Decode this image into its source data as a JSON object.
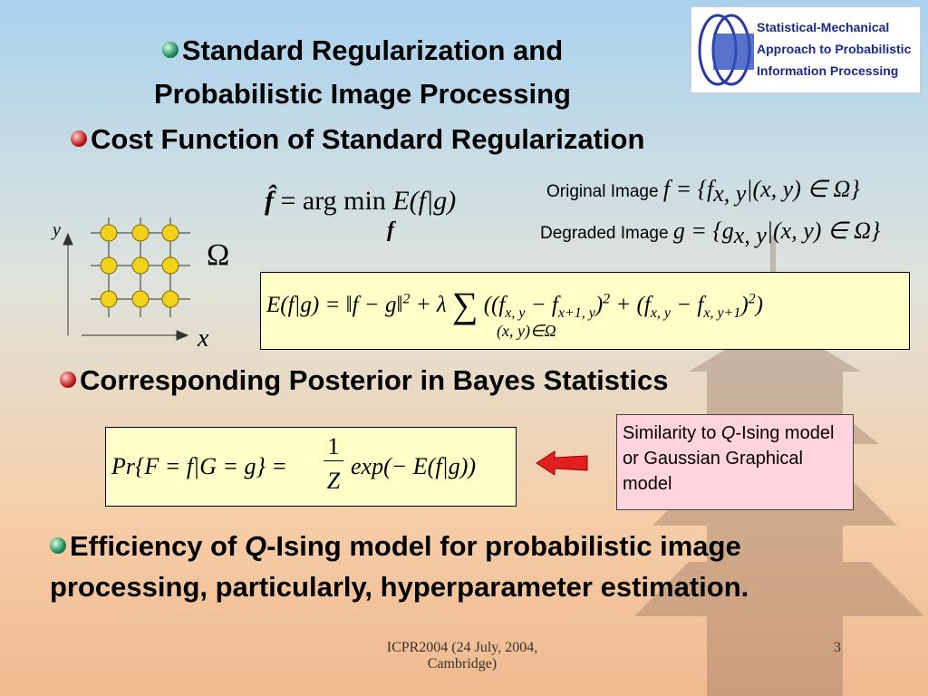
{
  "title": [
    "Standard Regularization and",
    "Probabilistic Image Processing"
  ],
  "logo": [
    "Statistical-Mechanical",
    "Approach to Probabilistic",
    "Information Processing"
  ],
  "bullets": [
    "Cost Function of Standard Regularization",
    "Corresponding Posterior in Bayes Statistics"
  ],
  "bullet3": [
    "Efficiency of ",
    "Q",
    "-Ising model for probabilistic image processing, particularly, hyperparameter estimation."
  ],
  "lattice": {
    "y_label": "y",
    "x_label": "x",
    "region": "Ω"
  },
  "estimate": {
    "lhs": "f̂",
    "op": "= arg min",
    "under": "f",
    "rhs": "E(f|g)"
  },
  "original": {
    "label": "Original Image",
    "expr": "f = {f",
    "sub": "x, y",
    "rest": "|(x, y) ∈ Ω}"
  },
  "degraded": {
    "label": "Degraded Image",
    "expr": "g = {g",
    "sub": "x, y",
    "rest": "|(x, y) ∈ Ω}"
  },
  "cost": [
    "E(f|g) = ‖f − g‖",
    "2",
    " + λ ",
    "∑",
    "(x, y)∈Ω",
    "((f",
    "x, y",
    " − f",
    "x+1, y",
    ")",
    "2",
    " + (f",
    "x, y",
    " − f",
    "x, y+1",
    ")",
    "2",
    ")"
  ],
  "posterior": {
    "lhs": "Pr{F = f|G = g} =",
    "num": "1",
    "den": "Z",
    "rhs": "exp(− E(f|g))"
  },
  "callout": [
    "Similarity to ",
    "Q",
    "-Ising model or Gaussian Graphical model"
  ],
  "footer": {
    "venue": "ICPR2004 (24 July, 2004, Cambridge)",
    "page": "3"
  }
}
